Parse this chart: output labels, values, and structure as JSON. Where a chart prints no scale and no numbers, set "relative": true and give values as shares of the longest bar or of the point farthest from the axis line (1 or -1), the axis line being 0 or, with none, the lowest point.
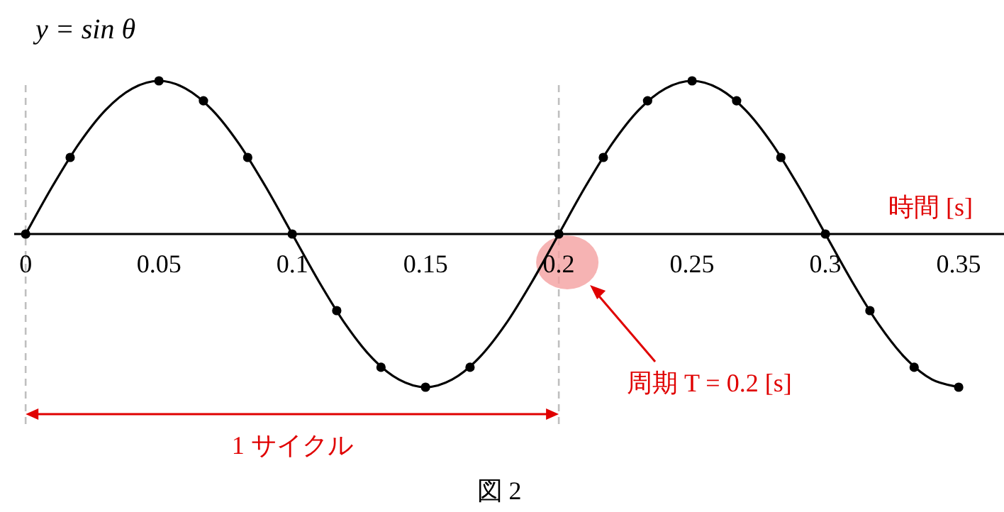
{
  "chart_data": {
    "type": "line",
    "title": "y = sin θ",
    "xlabel": "時間  [s]",
    "relative": true,
    "xlim": [
      -0.0043,
      0.367
    ],
    "xticks": [
      0,
      0.05,
      0.1,
      0.15,
      0.2,
      0.25,
      0.3,
      0.35
    ],
    "grid": false,
    "legend": false,
    "line_style": "solid",
    "series": [
      {
        "color": "#000000",
        "marker": "none",
        "x": [
          0,
          0.01,
          0.02,
          0.03,
          0.04,
          0.05,
          0.06,
          0.07,
          0.08,
          0.09,
          0.1,
          0.11,
          0.12,
          0.13,
          0.14,
          0.15,
          0.16,
          0.17,
          0.18,
          0.19,
          0.2,
          0.21,
          0.22,
          0.23,
          0.24,
          0.25,
          0.26,
          0.27,
          0.28,
          0.29,
          0.3,
          0.31,
          0.32,
          0.33,
          0.34,
          0.35
        ],
        "values": [
          0,
          0.31,
          0.59,
          0.81,
          0.95,
          1,
          0.95,
          0.81,
          0.59,
          0.31,
          0,
          -0.31,
          -0.59,
          -0.81,
          -0.95,
          -1,
          -0.95,
          -0.81,
          -0.59,
          -0.31,
          0,
          0.31,
          0.59,
          0.81,
          0.95,
          1,
          0.95,
          0.81,
          0.59,
          0.31,
          0,
          -0.31,
          -0.59,
          -0.81,
          -0.95,
          -1
        ]
      },
      {
        "type": "scatter",
        "color": "#000000",
        "marker": "circle",
        "x": [
          0,
          0.0167,
          0.05,
          0.0667,
          0.0833,
          0.1,
          0.1167,
          0.1333,
          0.15,
          0.1667,
          0.2,
          0.2167,
          0.2333,
          0.25,
          0.2667,
          0.2833,
          0.3,
          0.3167,
          0.3333,
          0.35
        ],
        "values": [
          0,
          0.5,
          1,
          0.87,
          0.5,
          0,
          -0.5,
          -0.87,
          -1,
          -0.87,
          0,
          0.5,
          0.87,
          1,
          0.87,
          0.5,
          0,
          -0.5,
          -0.87,
          -1
        ]
      }
    ],
    "ref_lines": [
      {
        "axis": "x",
        "value": 0,
        "color": "#bfbfbf",
        "line_style": "dashed"
      },
      {
        "axis": "x",
        "value": 0.2,
        "color": "#bfbfbf",
        "line_style": "dashed"
      }
    ],
    "annotations": [
      "周期 T = 0.2 [s]",
      "1 サイクル",
      "図 2"
    ]
  }
}
